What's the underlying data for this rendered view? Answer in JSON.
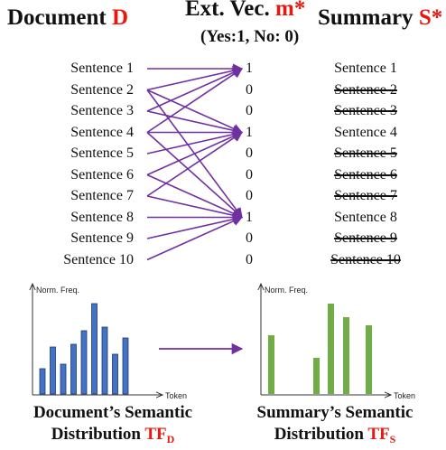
{
  "header": {
    "doc_title": "Document ",
    "doc_symbol": "D",
    "ext_title": "Ext. Vec. ",
    "ext_symbol": "m*",
    "ext_legend": "(Yes:1, No: 0)",
    "sum_title": "Summary ",
    "sum_symbol": "S*"
  },
  "sentences": [
    "Sentence 1",
    "Sentence 2",
    "Sentence 3",
    "Sentence 4",
    "Sentence 5",
    "Sentence 6",
    "Sentence 7",
    "Sentence 8",
    "Sentence 9",
    "Sentence 10"
  ],
  "extraction_vector": [
    "1",
    "0",
    "0",
    "1",
    "0",
    "0",
    "0",
    "1",
    "0",
    "0"
  ],
  "summary_sentences": [
    {
      "text": "Sentence 1",
      "removed": false
    },
    {
      "text": "Sentence 2",
      "removed": true
    },
    {
      "text": "Sentence 3",
      "removed": true
    },
    {
      "text": "Sentence 4",
      "removed": false
    },
    {
      "text": "Sentence 5",
      "removed": true
    },
    {
      "text": "Sentence 6",
      "removed": true
    },
    {
      "text": "Sentence 7",
      "removed": true
    },
    {
      "text": "Sentence 8",
      "removed": false
    },
    {
      "text": "Sentence 9",
      "removed": true
    },
    {
      "text": "Sentence 10",
      "removed": true
    }
  ],
  "arrow_links": [
    [
      1,
      1
    ],
    [
      2,
      1
    ],
    [
      3,
      1
    ],
    [
      4,
      1
    ],
    [
      2,
      4
    ],
    [
      3,
      4
    ],
    [
      4,
      4
    ],
    [
      5,
      4
    ],
    [
      6,
      4
    ],
    [
      7,
      4
    ],
    [
      2,
      8
    ],
    [
      4,
      8
    ],
    [
      6,
      8
    ],
    [
      7,
      8
    ],
    [
      8,
      8
    ],
    [
      9,
      8
    ],
    [
      10,
      8
    ]
  ],
  "doc_chart": {
    "y_label": "Norm. Freq.",
    "x_label": "Token",
    "values": [
      0.28,
      0.52,
      0.33,
      0.55,
      0.7,
      1.0,
      0.74,
      0.44,
      0.62
    ],
    "color": "#4472c4",
    "caption_line1": "Document’s Semantic",
    "caption_line2": "Distribution ",
    "caption_symbol": "TF",
    "caption_sub": "D"
  },
  "sum_chart": {
    "y_label": "Norm. Freq.",
    "x_label": "Token",
    "values": [
      0.65,
      0.4,
      1.0,
      0.85,
      0.76
    ],
    "color": "#70ad47",
    "caption_line1": "Summary’s Semantic",
    "caption_line2": "Distribution ",
    "caption_symbol": "TF",
    "caption_sub": "S"
  },
  "colors": {
    "accent_red": "#e8180f",
    "arrow": "#7030a0"
  }
}
